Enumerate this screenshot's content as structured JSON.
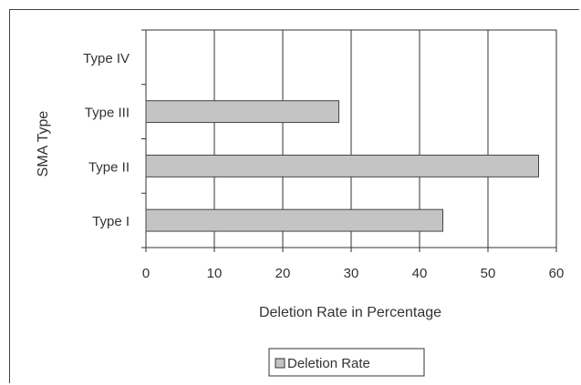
{
  "chart_data": {
    "type": "bar",
    "orientation": "horizontal",
    "categories": [
      "Type I",
      "Type II",
      "Type III",
      "Type IV"
    ],
    "series": [
      {
        "name": "Deletion Rate",
        "values": [
          43.4,
          57.4,
          28.2,
          0
        ]
      }
    ],
    "xlabel": "Deletion Rate in Percentage",
    "ylabel": "SMA Type",
    "xlim": [
      0,
      60
    ],
    "xticks": [
      0,
      10,
      20,
      30,
      40,
      50,
      60
    ],
    "grid": true,
    "legend": "bottom",
    "colors": {
      "bar_fill": "#c4c4c4",
      "bar_stroke": "#444444",
      "grid": "#333333",
      "plot_bg": "#ffffff"
    }
  }
}
